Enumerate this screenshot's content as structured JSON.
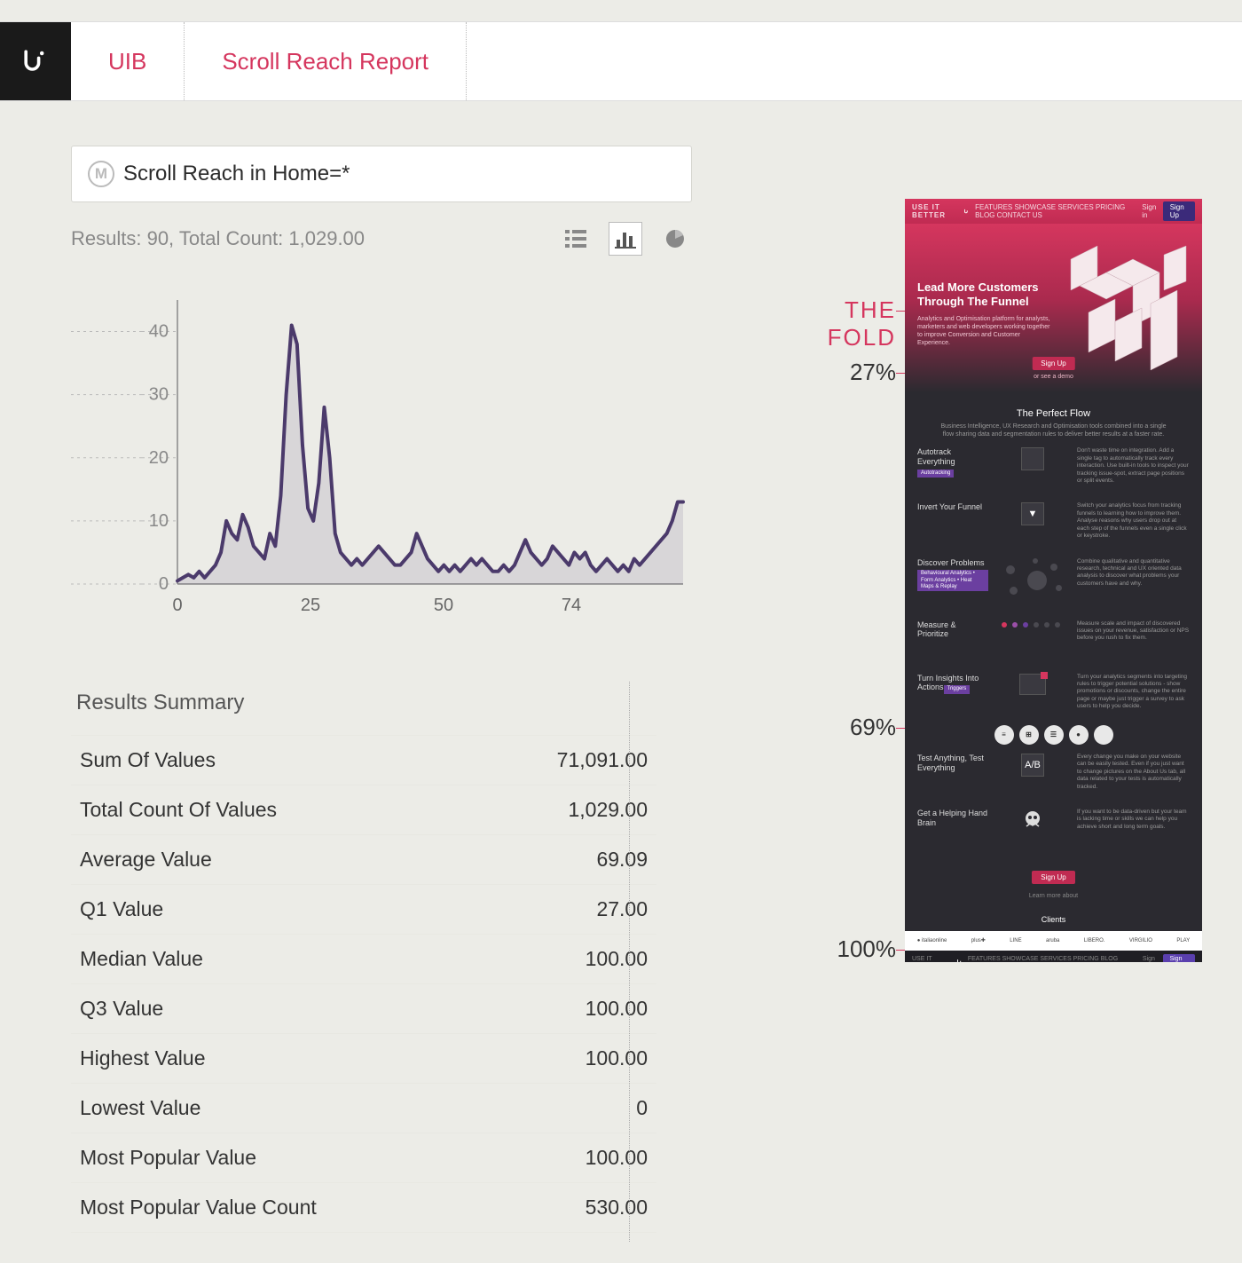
{
  "topbar": {
    "tabs": [
      "UIB",
      "Scroll Reach Report"
    ],
    "tab_color": "#d5365e"
  },
  "filter": {
    "badge": "M",
    "text": "Scroll Reach in Home=*"
  },
  "results": {
    "label": "Results:",
    "count": 90,
    "total_label": "Total Count:",
    "total": "1,029.00",
    "full_text": "Results: 90, Total Count: 1,029.00"
  },
  "view_modes": [
    "list",
    "bar",
    "pie"
  ],
  "chart": {
    "type": "area-line",
    "line_color": "#4b3a6b",
    "fill_color": "#4b3a6b",
    "fill_opacity": 0.12,
    "line_width": 4,
    "background": "#ecece7",
    "grid_color": "#bbbbbb",
    "axis_color": "#888888",
    "y_ticks": [
      0,
      10,
      20,
      30,
      40
    ],
    "x_ticks": [
      0,
      25,
      50,
      74
    ],
    "xlim": [
      0,
      95
    ],
    "ylim": [
      0,
      45
    ],
    "y_values": [
      0.5,
      1,
      1.5,
      1,
      2,
      1,
      2,
      3,
      5,
      10,
      8,
      7,
      11,
      9,
      6,
      5,
      4,
      8,
      6,
      14,
      30,
      41,
      38,
      22,
      12,
      10,
      16,
      28,
      20,
      8,
      5,
      4,
      3,
      4,
      3,
      4,
      5,
      6,
      5,
      4,
      3,
      3,
      4,
      5,
      8,
      6,
      4,
      3,
      2,
      3,
      2,
      3,
      2,
      3,
      4,
      3,
      4,
      3,
      2,
      2,
      3,
      2,
      3,
      5,
      7,
      5,
      4,
      3,
      4,
      6,
      5,
      4,
      3,
      5,
      4,
      5,
      3,
      2,
      3,
      4,
      3,
      2,
      3,
      2,
      4,
      3,
      4,
      5,
      6,
      7,
      8,
      10,
      13,
      13
    ]
  },
  "summary": {
    "title": "Results Summary",
    "rows": [
      {
        "label": "Sum Of Values",
        "value": "71,091.00"
      },
      {
        "label": "Total Count Of Values",
        "value": "1,029.00"
      },
      {
        "label": "Average Value",
        "value": "69.09"
      },
      {
        "label": "Q1 Value",
        "value": "27.00"
      },
      {
        "label": "Median Value",
        "value": "100.00"
      },
      {
        "label": "Q3 Value",
        "value": "100.00"
      },
      {
        "label": "Highest Value",
        "value": "100.00"
      },
      {
        "label": "Lowest Value",
        "value": "0"
      },
      {
        "label": "Most Popular Value",
        "value": "100.00"
      },
      {
        "label": "Most Popular Value Count",
        "value": "530.00"
      }
    ]
  },
  "preview_markers": {
    "fold": "THE\nFOLD",
    "p27": "27%",
    "p69": "69%",
    "p100": "100%",
    "line_color": "#d5365e"
  },
  "preview": {
    "brand": "USE IT BETTER",
    "nav": [
      "FEATURES",
      "SHOWCASE",
      "SERVICES",
      "PRICING",
      "BLOG",
      "CONTACT US"
    ],
    "signin": "Sign in",
    "signup": "Sign Up",
    "hero_title": "Lead More Customers Through The Funnel",
    "hero_sub": "Analytics and Optimisation platform for analysts, marketers and web developers working together to improve Conversion and Customer Experience.",
    "hero_cta": "Sign Up",
    "hero_cta_sub": "or see a demo",
    "pf_title": "The Perfect Flow",
    "pf_sub": "Business Intelligence, UX Research and Optimisation tools combined into a single flow sharing data and segmentation rules to deliver better results at a faster rate.",
    "features": [
      {
        "title": "Autotrack Everything",
        "tag": "Autotracking",
        "icon": "</>",
        "text": "Don't waste time on integration. Add a single tag to automatically track every interaction. Use built-in tools to inspect your tracking issue-spot, extract page positions or split events."
      },
      {
        "title": "Invert Your Funnel",
        "tag": "",
        "icon": "▼",
        "text": "Switch your analytics focus from tracking funnels to learning how to improve them. Analyse reasons why users drop out at each step of the funnels even a single click or keystroke."
      },
      {
        "title": "Discover Problems",
        "tag": "Behavioural Analytics • Form Analytics • Heat Maps & Replay",
        "icon": "circles",
        "text": "Combine qualitative and quantitative research, technical and UX oriented data analysis to discover what problems your customers have and why."
      },
      {
        "title": "Measure & Prioritize",
        "tag": "",
        "icon": "dots",
        "text": "Measure scale and impact of discovered issues on your revenue, satisfaction or NPS before you rush to fix them."
      },
      {
        "title": "Turn Insights Into Actions",
        "tag": "Triggers",
        "icon": "panel",
        "text": "Turn your analytics segments into targeting rules to trigger potential solutions - show promotions or discounts, change the entire page or maybe just trigger a survey to ask users to help you decide."
      },
      {
        "title": "Test Anything, Test Everything",
        "tag": "",
        "icon": "A/B",
        "text": "Every change you make on your website can be easily tested. Even if you just want to change pictures on the About Us tab, all data related to your tests is automatically tracked."
      },
      {
        "title": "Get a Helping Hand Brain",
        "tag": "",
        "icon": "skull",
        "text": "If you want to be data-driven but your team is lacking time or skills we can help you achieve short and long term goals."
      }
    ],
    "icon_row": [
      "≡",
      "⊞",
      "☰",
      "●",
      "</>"
    ],
    "footer_cta": "Sign Up",
    "learn_more": "Learn more about",
    "clients_title": "Clients",
    "clients": [
      "● italiaonline",
      "plus✚",
      "LINE",
      "aruba",
      "LIBERO.",
      "VIRGILIO",
      "PLAY"
    ]
  }
}
